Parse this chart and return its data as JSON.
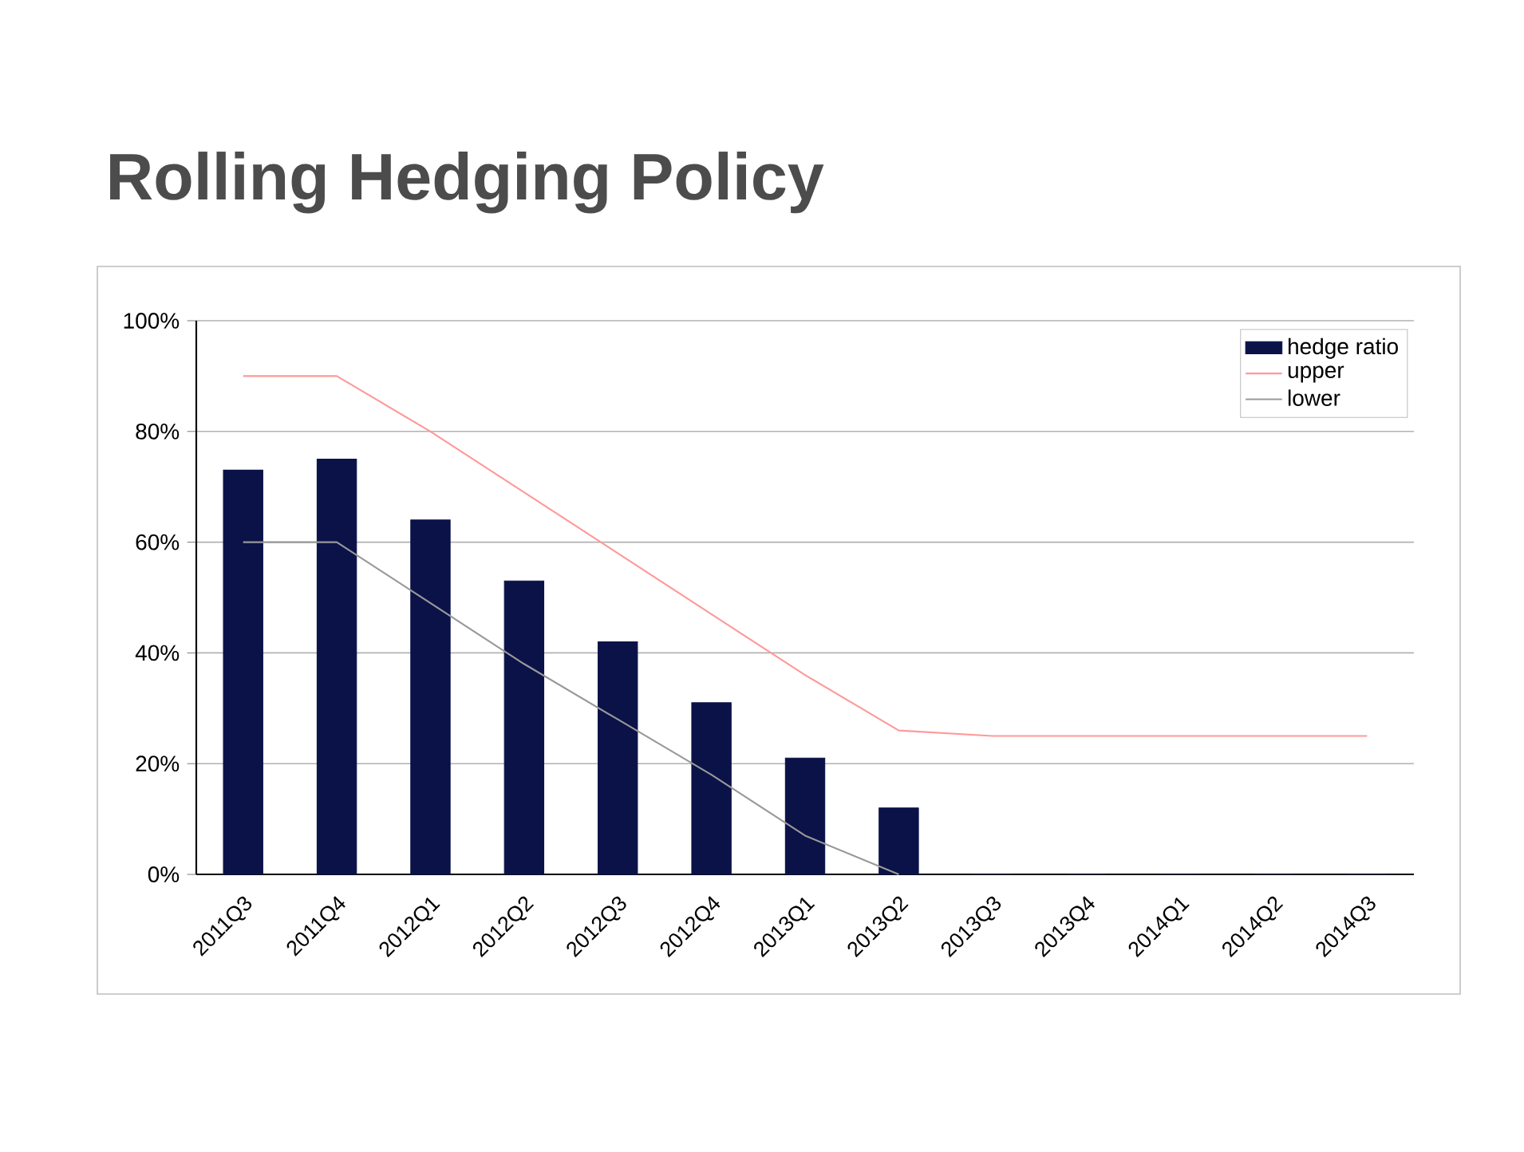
{
  "chart_data": {
    "type": "bar",
    "title": "Rolling Hedging Policy",
    "categories": [
      "2011Q3",
      "2011Q4",
      "2012Q1",
      "2012Q2",
      "2012Q3",
      "2012Q4",
      "2013Q1",
      "2013Q2",
      "2013Q3",
      "2013Q4",
      "2014Q1",
      "2014Q2",
      "2014Q3"
    ],
    "series": [
      {
        "name": "hedge ratio",
        "color": "#0a1248",
        "values": [
          73,
          75,
          64,
          53,
          42,
          31,
          21,
          12,
          0,
          0,
          0,
          0,
          0
        ]
      },
      {
        "name": "upper",
        "type": "line",
        "color": "#ff9999",
        "values": [
          90,
          90,
          80,
          69,
          58,
          47,
          36,
          26,
          25,
          25,
          25,
          25,
          25
        ]
      },
      {
        "name": "lower",
        "type": "line",
        "color": "#999999",
        "values": [
          60,
          60,
          49,
          38,
          28,
          18,
          7,
          0,
          null,
          null,
          null,
          null,
          null
        ]
      }
    ],
    "ylim": [
      0,
      100
    ],
    "yticks": [
      {
        "value": 0,
        "label": "0%"
      },
      {
        "value": 20,
        "label": "20%"
      },
      {
        "value": 40,
        "label": "40%"
      },
      {
        "value": 60,
        "label": "60%"
      },
      {
        "value": 80,
        "label": "80%"
      },
      {
        "value": 100,
        "label": "100%"
      }
    ],
    "grid": "y",
    "legend": "top right",
    "marker": "none",
    "line_style": "solid"
  }
}
